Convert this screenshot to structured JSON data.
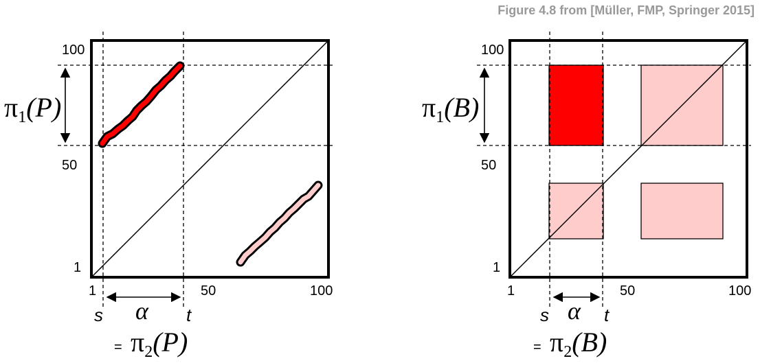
{
  "credit": "Figure 4.8 from [Müller, FMP, Springer 2015]",
  "colors": {
    "strong": "#ff0000",
    "weak": "#ffcccc",
    "frame": "#000000"
  },
  "left": {
    "y_tick_top": "100",
    "y_tick_mid": "50",
    "y_tick_bottom": "1",
    "x_tick_left": "1",
    "x_tick_mid": "50",
    "x_tick_right": "100",
    "label_s": "s",
    "label_t": "t",
    "label_alpha": "α",
    "pi1_symbol": "π",
    "pi1_sub": "1",
    "pi1_arg": "(P)",
    "pi2_eq": "=",
    "pi2_symbol": "π",
    "pi2_sub": "2",
    "pi2_arg": "(P)"
  },
  "right": {
    "y_tick_top": "100",
    "y_tick_mid": "50",
    "y_tick_bottom": "1",
    "x_tick_left": "1",
    "x_tick_mid": "50",
    "x_tick_right": "100",
    "label_s": "s",
    "label_t": "t",
    "label_alpha": "α",
    "pi1_symbol": "π",
    "pi1_sub": "1",
    "pi1_arg": "(B)",
    "pi2_eq": "=",
    "pi2_symbol": "π",
    "pi2_sub": "2",
    "pi2_arg": "(B)"
  }
}
